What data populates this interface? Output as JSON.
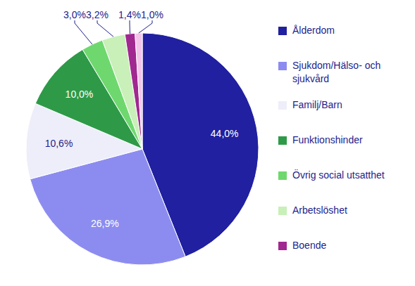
{
  "chart_data": {
    "type": "pie",
    "categories": [
      "Ålderdom",
      "Sjukdom/Hälso- och sjukvård",
      "Familj/Barn",
      "Funktionshinder",
      "Övrig social utsatthet",
      "Arbetslöshet",
      "Boende",
      null
    ],
    "values": [
      44.0,
      26.9,
      10.6,
      10.0,
      3.0,
      3.2,
      1.4,
      1.0
    ],
    "value_labels": [
      "44,0%",
      "26,9%",
      "10,6%",
      "10,0%",
      "3,0%",
      "3,2%",
      "1,4%",
      "1,0%"
    ],
    "colors": [
      "#2020a0",
      "#8c8cf0",
      "#eeeefa",
      "#2e9a48",
      "#6ed86e",
      "#c8f0b8",
      "#a02890",
      "#f4c4ea"
    ],
    "data_labels": true
  }
}
